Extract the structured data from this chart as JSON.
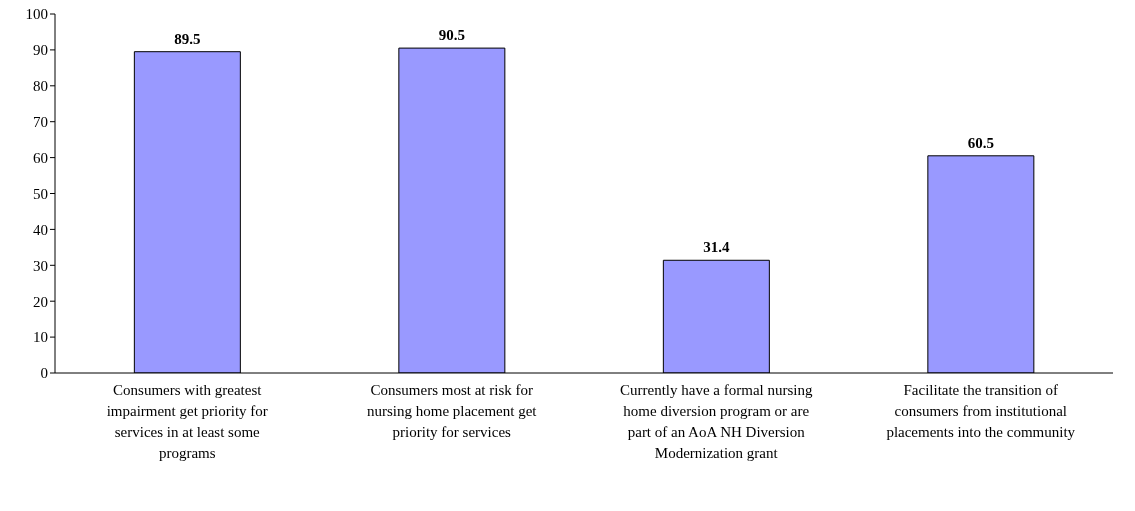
{
  "chart_data": {
    "type": "bar",
    "categories": [
      "Consumers with greatest impairment get priority for services in at least some programs",
      "Consumers most at risk for nursing home placement get priority for services",
      "Currently have a formal nursing home diversion program or are part of an AoA NH Diversion Modernization grant",
      "Facilitate the transition of consumers from institutional placements into the community"
    ],
    "values": [
      89.5,
      90.5,
      31.4,
      60.5
    ],
    "color": "#9999ff",
    "ylim": [
      0,
      100
    ],
    "yticks": [
      0,
      10,
      20,
      30,
      40,
      50,
      60,
      70,
      80,
      90,
      100
    ],
    "grid": false,
    "data_labels": true,
    "legend": false
  }
}
